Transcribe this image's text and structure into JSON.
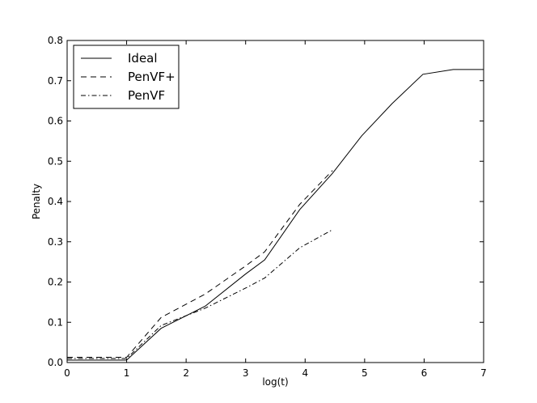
{
  "chart_data": {
    "type": "line",
    "title": "",
    "xlabel": "log(t)",
    "ylabel": "Penalty",
    "xlim": [
      0,
      7
    ],
    "ylim": [
      0,
      0.8
    ],
    "xticks": [
      "0",
      "1",
      "2",
      "3",
      "4",
      "5",
      "6",
      "7"
    ],
    "yticks": [
      "0.0",
      "0.1",
      "0.2",
      "0.3",
      "0.4",
      "0.5",
      "0.6",
      "0.7",
      "0.8"
    ],
    "grid": false,
    "legend_position": "top-left",
    "series": [
      {
        "name": "Ideal",
        "dash": "solid",
        "color": "#000000",
        "x": [
          0,
          1,
          1.58,
          2.32,
          3.0,
          3.32,
          3.91,
          4.46,
          4.95,
          5.46,
          5.98,
          6.49,
          7.0
        ],
        "y": [
          0.006,
          0.006,
          0.085,
          0.14,
          0.22,
          0.255,
          0.38,
          0.47,
          0.563,
          0.643,
          0.716,
          0.728,
          0.728
        ]
      },
      {
        "name": "PenVF+",
        "dash": "dashed",
        "color": "#000000",
        "x": [
          0,
          1,
          1.58,
          2.32,
          3.0,
          3.32,
          3.91,
          4.46
        ],
        "y": [
          0.013,
          0.013,
          0.112,
          0.17,
          0.24,
          0.275,
          0.393,
          0.477
        ]
      },
      {
        "name": "PenVF",
        "dash": "dashdot",
        "color": "#000000",
        "x": [
          0,
          1,
          1.58,
          2.32,
          3.0,
          3.32,
          3.91,
          4.46
        ],
        "y": [
          0.01,
          0.01,
          0.092,
          0.135,
          0.185,
          0.21,
          0.285,
          0.33
        ]
      }
    ]
  }
}
